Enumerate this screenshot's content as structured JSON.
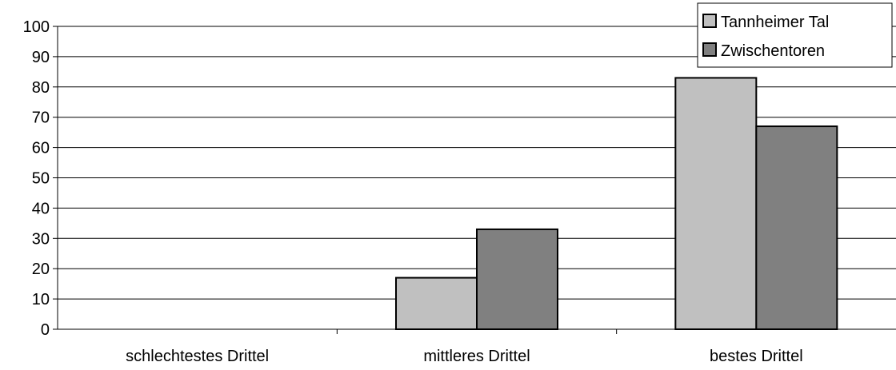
{
  "chart_data": {
    "type": "bar",
    "categories": [
      "schlechtestes Drittel",
      "mittleres Drittel",
      "bestes Drittel"
    ],
    "series": [
      {
        "name": "Tannheimer Tal",
        "values": [
          0,
          17,
          83
        ],
        "color": "#c0c0c0"
      },
      {
        "name": "Zwischentoren",
        "values": [
          0,
          33,
          67
        ],
        "color": "#808080"
      }
    ],
    "ylim": [
      0,
      100
    ],
    "yticks": [
      0,
      10,
      20,
      30,
      40,
      50,
      60,
      70,
      80,
      90,
      100
    ],
    "grid": true,
    "legend_position": "top-right"
  }
}
